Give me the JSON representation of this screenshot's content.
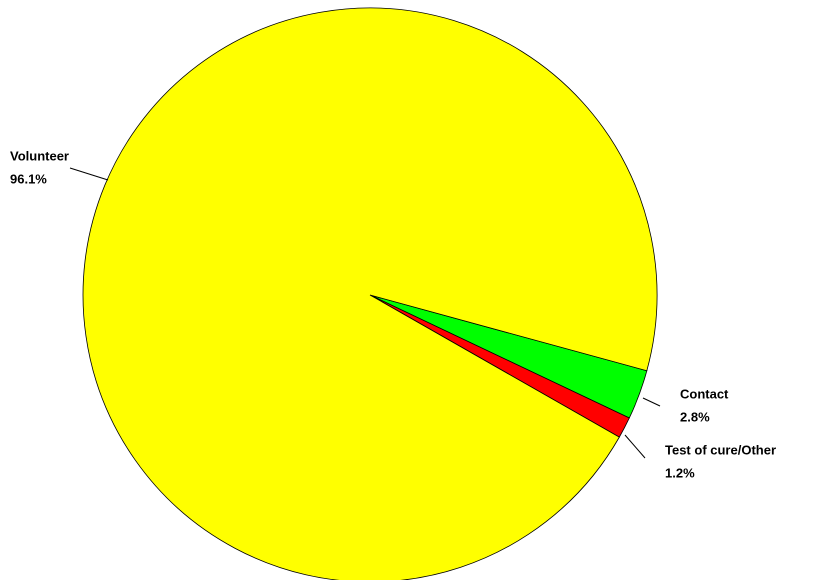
{
  "chart_data": {
    "type": "pie",
    "categories": [
      "Contact",
      "Test of cure/Other",
      "Volunteer"
    ],
    "values": [
      2.8,
      1.2,
      96.1
    ],
    "value_labels": [
      "2.8%",
      "1.2%",
      "96.1%"
    ],
    "colors": [
      "#00ff00",
      "#ff0000",
      "#ffff00"
    ]
  }
}
